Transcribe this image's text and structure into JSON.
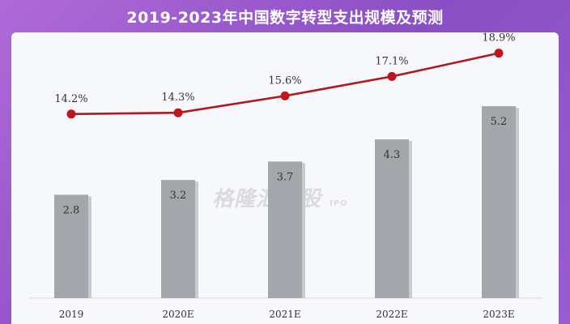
{
  "title": "2019-2023年中国数字转型支出规模及预测",
  "watermark": {
    "text": "格隆汇新股",
    "sub": "IPO"
  },
  "colors": {
    "bar": "#a3a6aa",
    "bar_shadow": "#c9cbd0",
    "line": "#b01a1f",
    "marker": "#c0171c",
    "label": "#333333"
  },
  "chart_data": {
    "type": "bar",
    "title": "2019-2023年中国数字转型支出规模及预测",
    "categories": [
      "2019",
      "2020E",
      "2021E",
      "2022E",
      "2023E"
    ],
    "series": [
      {
        "type": "bar",
        "values": [
          2.8,
          3.2,
          3.7,
          4.3,
          5.2
        ],
        "labels": [
          "2.8",
          "3.2",
          "3.7",
          "4.3",
          "5.2"
        ]
      },
      {
        "type": "line",
        "values": [
          14.2,
          14.3,
          15.6,
          17.1,
          18.9
        ],
        "labels": [
          "14.2%",
          "14.3%",
          "15.6%",
          "17.1%",
          "18.9%"
        ]
      }
    ],
    "xlabel": "",
    "ylabel": "",
    "ylim_bar": [
      0,
      7.2
    ],
    "ylim_line": [
      0,
      20.5
    ],
    "grid": false,
    "legend": "none"
  }
}
